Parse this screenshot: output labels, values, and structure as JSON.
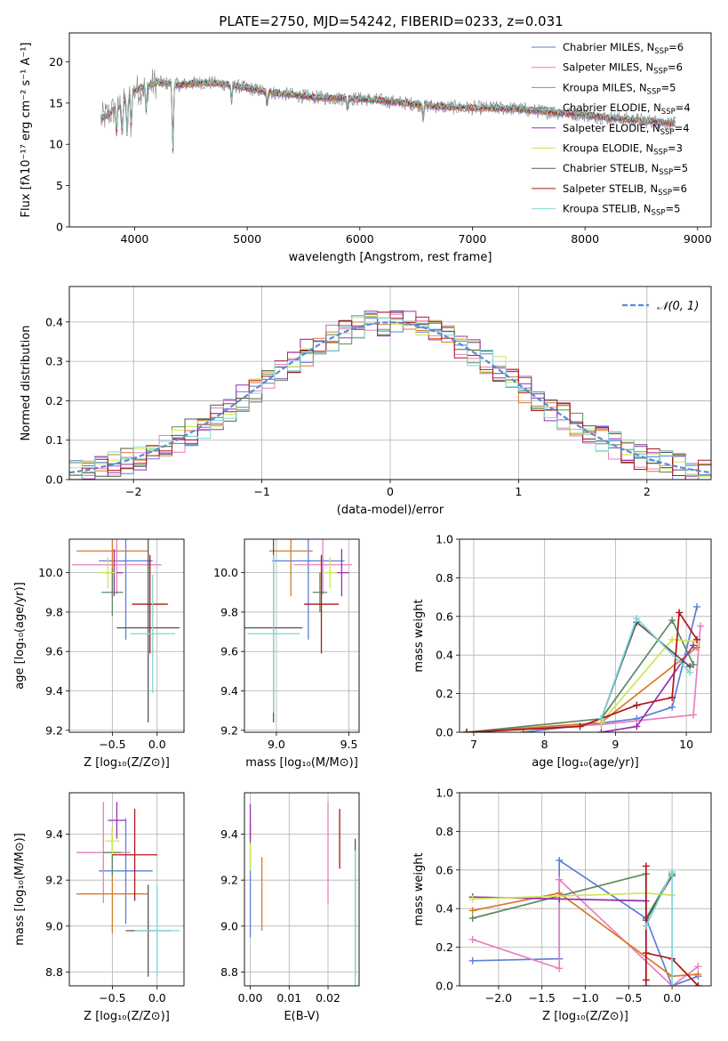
{
  "figure_title": "PLATE=2750, MJD=54242, FIBERID=0233, z=0.031",
  "colors": {
    "chabrier_miles": "#5b7fd8",
    "salpeter_miles": "#e77fc0",
    "kroupa_miles": "#d97a2b",
    "chabrier_elodie": "#5a8a60",
    "salpeter_elodie": "#9a2fb0",
    "kroupa_elodie": "#cde657",
    "chabrier_stelib": "#555555",
    "salpeter_stelib": "#b01515",
    "kroupa_stelib": "#7fd6d6",
    "normal_curve": "#5a8ad8"
  },
  "chart_data": [
    {
      "id": "spectrum",
      "type": "line",
      "title": "PLATE=2750, MJD=54242, FIBERID=0233, z=0.031",
      "xlabel": "wavelength [Angstrom, rest frame]",
      "ylabel": "Flux [fλ10⁻¹⁷ erg cm⁻² s⁻¹ A⁻¹]",
      "xlim": [
        3420,
        9120
      ],
      "ylim": [
        0,
        23.5
      ],
      "xticks": [
        4000,
        5000,
        6000,
        7000,
        8000,
        9000
      ],
      "yticks": [
        0,
        5,
        10,
        15,
        20
      ],
      "grid": false,
      "legend_position": "top-right",
      "continuum": {
        "x": [
          3700,
          3800,
          3900,
          4000,
          4100,
          4200,
          4400,
          4600,
          4800,
          5000,
          5200,
          5400,
          5600,
          5800,
          6000,
          6200,
          6400,
          6600,
          6800,
          7000,
          7200,
          7400,
          7600,
          7800,
          8000,
          8200,
          8400,
          8600,
          8800
        ],
        "y": [
          13,
          14,
          15,
          16.5,
          17,
          17.5,
          17.2,
          17.5,
          17.3,
          16.8,
          16.3,
          16,
          15.7,
          15.6,
          15.5,
          15.3,
          15,
          14.7,
          14.5,
          14.4,
          14.4,
          14.3,
          14,
          13.8,
          13.6,
          13.2,
          13,
          12.8,
          12.5
        ]
      },
      "series": [
        {
          "name": "Chabrier MILES, N_SSP=6",
          "legend": "Chabrier MILES, N",
          "sub": "SSP",
          "eq": "=6",
          "color_key": "chabrier_miles"
        },
        {
          "name": "Salpeter MILES, N_SSP=6",
          "legend": "Salpeter MILES, N",
          "sub": "SSP",
          "eq": "=6",
          "color_key": "salpeter_miles"
        },
        {
          "name": "Kroupa MILES, N_SSP=5",
          "legend": "Kroupa MILES, N",
          "sub": "SSP",
          "eq": "=5",
          "color_key": "kroupa_miles"
        },
        {
          "name": "Chabrier ELODIE, N_SSP=4",
          "legend": "Chabrier ELODIE, N",
          "sub": "SSP",
          "eq": "=4",
          "color_key": "chabrier_elodie"
        },
        {
          "name": "Salpeter ELODIE, N_SSP=4",
          "legend": "Salpeter ELODIE, N",
          "sub": "SSP",
          "eq": "=4",
          "color_key": "salpeter_elodie"
        },
        {
          "name": "Kroupa ELODIE, N_SSP=3",
          "legend": "Kroupa ELODIE, N",
          "sub": "SSP",
          "eq": "=3",
          "color_key": "kroupa_elodie"
        },
        {
          "name": "Chabrier STELIB, N_SSP=5",
          "legend": "Chabrier STELIB, N",
          "sub": "SSP",
          "eq": "=5",
          "color_key": "chabrier_stelib"
        },
        {
          "name": "Salpeter STELIB, N_SSP=6",
          "legend": "Salpeter STELIB, N",
          "sub": "SSP",
          "eq": "=6",
          "color_key": "salpeter_stelib"
        },
        {
          "name": "Kroupa STELIB, N_SSP=5",
          "legend": "Kroupa STELIB, N",
          "sub": "SSP",
          "eq": "=5",
          "color_key": "kroupa_stelib"
        }
      ]
    },
    {
      "id": "residuals",
      "type": "line",
      "xlabel": "(data-model)/error",
      "ylabel": "Normed distribution",
      "xlim": [
        -2.5,
        2.5
      ],
      "ylim": [
        0,
        0.49
      ],
      "xticks": [
        -2,
        -1,
        0,
        1,
        2
      ],
      "yticks": [
        0.0,
        0.1,
        0.2,
        0.3,
        0.4
      ],
      "grid": true,
      "legend_position": "top-right",
      "legend_label": "𝒩(0, 1)",
      "normal_mean": 0,
      "normal_sigma": 1
    },
    {
      "id": "age_vs_Z",
      "type": "scatter",
      "xlabel": "Z [log₁₀(Z/Z⊙)]",
      "ylabel": "age  [log₁₀(age/yr)]",
      "xlim": [
        -0.98,
        0.3
      ],
      "ylim": [
        9.19,
        10.17
      ],
      "xticks": [
        -0.5,
        0.0
      ],
      "yticks": [
        9.2,
        9.4,
        9.6,
        9.8,
        10.0
      ],
      "grid": true,
      "points": [
        {
          "color_key": "chabrier_miles",
          "x": -0.35,
          "xerr": 0.3,
          "y": 10.06,
          "yerr": 0.4
        },
        {
          "color_key": "salpeter_miles",
          "x": -0.45,
          "xerr": 0.5,
          "y": 10.04,
          "yerr": 0.15
        },
        {
          "color_key": "kroupa_miles",
          "x": -0.5,
          "xerr": 0.4,
          "y": 10.11,
          "yerr": 0.23
        },
        {
          "color_key": "chabrier_elodie",
          "x": -0.5,
          "xerr": 0.12,
          "y": 9.9,
          "yerr": 0.12
        },
        {
          "color_key": "salpeter_elodie",
          "x": -0.48,
          "xerr": 0.1,
          "y": 10.0,
          "yerr": 0.12
        },
        {
          "color_key": "kroupa_elodie",
          "x": -0.55,
          "xerr": 0.1,
          "y": 10.0,
          "yerr": 0.08
        },
        {
          "color_key": "chabrier_stelib",
          "x": -0.1,
          "xerr": 0.35,
          "y": 9.72,
          "yerr": 0.48
        },
        {
          "color_key": "salpeter_stelib",
          "x": -0.08,
          "xerr": 0.2,
          "y": 9.84,
          "yerr": 0.25
        },
        {
          "color_key": "kroupa_stelib",
          "x": -0.05,
          "xerr": 0.25,
          "y": 9.69,
          "yerr": 0.3
        }
      ]
    },
    {
      "id": "age_vs_mass",
      "type": "scatter",
      "xlabel": "mass [log₁₀(M/M⊙)]",
      "ylabel": "",
      "xlim": [
        8.78,
        9.57
      ],
      "ylim": [
        9.19,
        10.17
      ],
      "xticks": [
        9.0,
        9.5
      ],
      "yticks": [
        9.2,
        9.4,
        9.6,
        9.8,
        10.0
      ],
      "grid": true,
      "points": [
        {
          "color_key": "chabrier_miles",
          "x": 9.22,
          "xerr": 0.25,
          "y": 10.06,
          "yerr": 0.4
        },
        {
          "color_key": "salpeter_miles",
          "x": 9.32,
          "xerr": 0.2,
          "y": 10.04,
          "yerr": 0.15
        },
        {
          "color_key": "kroupa_miles",
          "x": 9.1,
          "xerr": 0.15,
          "y": 10.11,
          "yerr": 0.23
        },
        {
          "color_key": "chabrier_elodie",
          "x": 9.3,
          "xerr": 0.05,
          "y": 9.9,
          "yerr": 0.1
        },
        {
          "color_key": "salpeter_elodie",
          "x": 9.45,
          "xerr": 0.05,
          "y": 10.0,
          "yerr": 0.12
        },
        {
          "color_key": "kroupa_elodie",
          "x": 9.37,
          "xerr": 0.05,
          "y": 10.0,
          "yerr": 0.08
        },
        {
          "color_key": "chabrier_stelib",
          "x": 8.98,
          "xerr": 0.2,
          "y": 9.72,
          "yerr": 0.48
        },
        {
          "color_key": "salpeter_stelib",
          "x": 9.31,
          "xerr": 0.12,
          "y": 9.84,
          "yerr": 0.25
        },
        {
          "color_key": "kroupa_stelib",
          "x": 8.98,
          "xerr": 0.18,
          "y": 9.69,
          "yerr": 0.4
        }
      ]
    },
    {
      "id": "weight_vs_age",
      "type": "line",
      "xlabel": "age  [log₁₀(age/yr)]",
      "ylabel": "mass weight",
      "xlim": [
        6.8,
        10.35
      ],
      "ylim": [
        0,
        1.0
      ],
      "xticks": [
        7,
        8,
        9,
        10
      ],
      "yticks": [
        0.0,
        0.2,
        0.4,
        0.6,
        0.8,
        1.0
      ],
      "grid": true,
      "series": [
        {
          "color_key": "chabrier_miles",
          "x": [
            7.7,
            9.3,
            9.8,
            10.15
          ],
          "y": [
            0.0,
            0.07,
            0.13,
            0.65
          ]
        },
        {
          "color_key": "salpeter_miles",
          "x": [
            6.9,
            8.8,
            10.1,
            10.2
          ],
          "y": [
            0.0,
            0.04,
            0.09,
            0.55
          ]
        },
        {
          "color_key": "kroupa_miles",
          "x": [
            6.9,
            8.8,
            10.15
          ],
          "y": [
            0.0,
            0.05,
            0.44
          ]
        },
        {
          "color_key": "chabrier_elodie",
          "x": [
            6.9,
            8.8,
            9.8,
            10.1
          ],
          "y": [
            0.0,
            0.07,
            0.58,
            0.35
          ]
        },
        {
          "color_key": "salpeter_elodie",
          "x": [
            8.8,
            9.3,
            10.1
          ],
          "y": [
            0.0,
            0.03,
            0.45
          ]
        },
        {
          "color_key": "kroupa_elodie",
          "x": [
            8.8,
            9.8,
            10.15
          ],
          "y": [
            0.05,
            0.48,
            0.47
          ]
        },
        {
          "color_key": "chabrier_stelib",
          "x": [
            8.8,
            9.3,
            10.05
          ],
          "y": [
            0.07,
            0.57,
            0.34
          ]
        },
        {
          "color_key": "salpeter_stelib",
          "x": [
            6.9,
            8.5,
            9.3,
            9.8,
            9.9,
            10.15
          ],
          "y": [
            0.0,
            0.03,
            0.14,
            0.18,
            0.62,
            0.48
          ]
        },
        {
          "color_key": "kroupa_stelib",
          "x": [
            8.8,
            9.3,
            10.05
          ],
          "y": [
            0.07,
            0.59,
            0.31
          ]
        }
      ]
    },
    {
      "id": "mass_vs_Z",
      "type": "scatter",
      "xlabel": "Z [log₁₀(Z/Z⊙)]",
      "ylabel": "mass [log₁₀(M/M⊙)]",
      "xlim": [
        -0.98,
        0.3
      ],
      "ylim": [
        8.74,
        9.58
      ],
      "xticks": [
        -0.5,
        0.0
      ],
      "yticks": [
        8.8,
        9.0,
        9.2,
        9.4
      ],
      "grid": true,
      "points": [
        {
          "color_key": "chabrier_miles",
          "x": -0.35,
          "xerr": 0.3,
          "y": 9.24,
          "yerr": 0.23
        },
        {
          "color_key": "salpeter_miles",
          "x": -0.6,
          "xerr": 0.3,
          "y": 9.32,
          "yerr": 0.22
        },
        {
          "color_key": "kroupa_miles",
          "x": -0.5,
          "xerr": 0.4,
          "y": 9.14,
          "yerr": 0.17
        },
        {
          "color_key": "chabrier_elodie",
          "x": -0.5,
          "xerr": 0.1,
          "y": 9.32,
          "yerr": 0.1
        },
        {
          "color_key": "salpeter_elodie",
          "x": -0.45,
          "xerr": 0.1,
          "y": 9.46,
          "yerr": 0.08
        },
        {
          "color_key": "kroupa_elodie",
          "x": -0.5,
          "xerr": 0.08,
          "y": 9.37,
          "yerr": 0.06
        },
        {
          "color_key": "chabrier_stelib",
          "x": -0.1,
          "xerr": 0.25,
          "y": 8.98,
          "yerr": 0.2
        },
        {
          "color_key": "salpeter_stelib",
          "x": -0.25,
          "xerr": 0.25,
          "y": 9.31,
          "yerr": 0.2
        },
        {
          "color_key": "kroupa_stelib",
          "x": 0.0,
          "xerr": 0.25,
          "y": 8.98,
          "yerr": 0.2
        }
      ]
    },
    {
      "id": "mass_vs_ebv",
      "type": "scatter",
      "xlabel": "E(B-V)",
      "ylabel": "",
      "xlim": [
        -0.0015,
        0.028
      ],
      "ylim": [
        8.74,
        9.58
      ],
      "xticks": [
        0.0,
        0.01,
        0.02
      ],
      "yticks": [
        8.8,
        9.0,
        9.2,
        9.4
      ],
      "grid": true,
      "points": [
        {
          "color_key": "chabrier_miles",
          "x": 0.0,
          "xerr": 0,
          "y": 9.1,
          "yerr": 0.15
        },
        {
          "color_key": "salpeter_miles",
          "x": 0.02,
          "xerr": 0,
          "y": 9.32,
          "yerr": 0.22
        },
        {
          "color_key": "kroupa_miles",
          "x": 0.003,
          "xerr": 0,
          "y": 9.14,
          "yerr": 0.16
        },
        {
          "color_key": "chabrier_elodie",
          "x": 0.0,
          "xerr": 0,
          "y": 9.35,
          "yerr": 0.1
        },
        {
          "color_key": "salpeter_elodie",
          "x": 0.0,
          "xerr": 0,
          "y": 9.45,
          "yerr": 0.08
        },
        {
          "color_key": "kroupa_elodie",
          "x": 0.0,
          "xerr": 0,
          "y": 9.3,
          "yerr": 0.06
        },
        {
          "color_key": "chabrier_stelib",
          "x": 0.027,
          "xerr": 0,
          "y": 9.08,
          "yerr": 0.3
        },
        {
          "color_key": "salpeter_stelib",
          "x": 0.023,
          "xerr": 0,
          "y": 9.38,
          "yerr": 0.13
        },
        {
          "color_key": "kroupa_stelib",
          "x": 0.027,
          "xerr": 0,
          "y": 8.98,
          "yerr": 0.35
        }
      ]
    },
    {
      "id": "weight_vs_Z",
      "type": "line",
      "xlabel": "Z [log₁₀(Z/Z⊙)]",
      "ylabel": "mass weight",
      "xlim": [
        -2.45,
        0.45
      ],
      "ylim": [
        0,
        1.0
      ],
      "xticks": [
        -2.0,
        -1.5,
        -1.0,
        -0.5,
        0.0
      ],
      "yticks": [
        0.0,
        0.2,
        0.4,
        0.6,
        0.8,
        1.0
      ],
      "grid": true,
      "series": [
        {
          "color_key": "chabrier_miles",
          "x": [
            -2.3,
            -1.3,
            -1.3,
            -0.3,
            0.0,
            0.3
          ],
          "y": [
            0.13,
            0.14,
            0.65,
            0.35,
            0.0,
            0.05
          ]
        },
        {
          "color_key": "salpeter_miles",
          "x": [
            -2.3,
            -1.3,
            -1.3,
            0.0,
            0.3
          ],
          "y": [
            0.24,
            0.09,
            0.55,
            0.0,
            0.1
          ]
        },
        {
          "color_key": "kroupa_miles",
          "x": [
            -2.3,
            -1.3,
            0.0,
            0.3
          ],
          "y": [
            0.39,
            0.48,
            0.05,
            0.06
          ]
        },
        {
          "color_key": "chabrier_elodie",
          "x": [
            -2.3,
            -0.3,
            -0.3,
            0.0
          ],
          "y": [
            0.35,
            0.58,
            0.35,
            0.58
          ]
        },
        {
          "color_key": "salpeter_elodie",
          "x": [
            -2.3,
            -1.3,
            -0.3,
            -0.3
          ],
          "y": [
            0.46,
            0.45,
            0.44,
            0.0
          ]
        },
        {
          "color_key": "kroupa_elodie",
          "x": [
            -2.3,
            -0.3,
            0.0
          ],
          "y": [
            0.45,
            0.48,
            0.47
          ]
        },
        {
          "color_key": "chabrier_stelib",
          "x": [
            -0.3,
            0.0
          ],
          "y": [
            0.34,
            0.57
          ]
        },
        {
          "color_key": "salpeter_stelib",
          "x": [
            -0.3,
            -0.3,
            -0.3,
            0.0,
            0.3
          ],
          "y": [
            0.62,
            0.03,
            0.17,
            0.14,
            0.0
          ]
        },
        {
          "color_key": "kroupa_stelib",
          "x": [
            -0.3,
            0.0,
            0.0
          ],
          "y": [
            0.31,
            0.59,
            0.0
          ]
        }
      ]
    }
  ]
}
